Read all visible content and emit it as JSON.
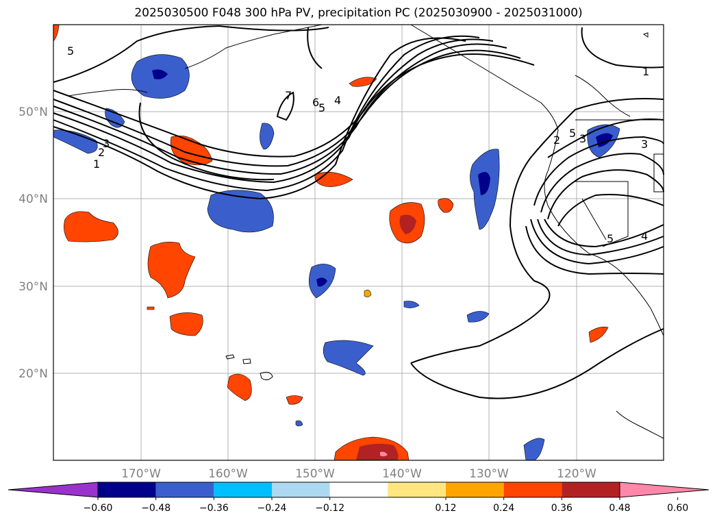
{
  "title": "2025030500 F048 300 hPa PV, precipitation PC (2025030900 - 2025031000)",
  "map": {
    "lon_labels": [
      "170°W",
      "160°W",
      "150°W",
      "140°W",
      "130°W",
      "120°W"
    ],
    "lat_labels": [
      "50°N",
      "40°N",
      "30°N",
      "20°N"
    ],
    "grid_color": "#b0b0b0",
    "coastline_color": "#000000"
  },
  "pv_contour_labels": [
    "5",
    "7",
    "6",
    "5",
    "4",
    "3",
    "2",
    "1",
    "5",
    "2",
    "3",
    "1",
    "3",
    "5",
    "4"
  ],
  "colorbar": {
    "ticks": [
      "−0.60",
      "−0.48",
      "−0.36",
      "−0.24",
      "−0.12",
      "0.12",
      "0.24",
      "0.36",
      "0.48",
      "0.60"
    ],
    "colors": [
      "#9933cc",
      "#00008b",
      "#3a5fcd",
      "#00bfff",
      "#add8f2",
      "#ffffff",
      "#ffe680",
      "#ffa500",
      "#ff4500",
      "#b22222",
      "#ff88aa"
    ]
  },
  "legend_colors": {
    "neg_strong": "#00008b",
    "neg_mid": "#3a5fcd",
    "neg_weak": "#00bfff",
    "pos_weak": "#ffa500",
    "pos_mid": "#ff4500",
    "pos_strong": "#b22222",
    "pos_max": "#ff88aa"
  }
}
